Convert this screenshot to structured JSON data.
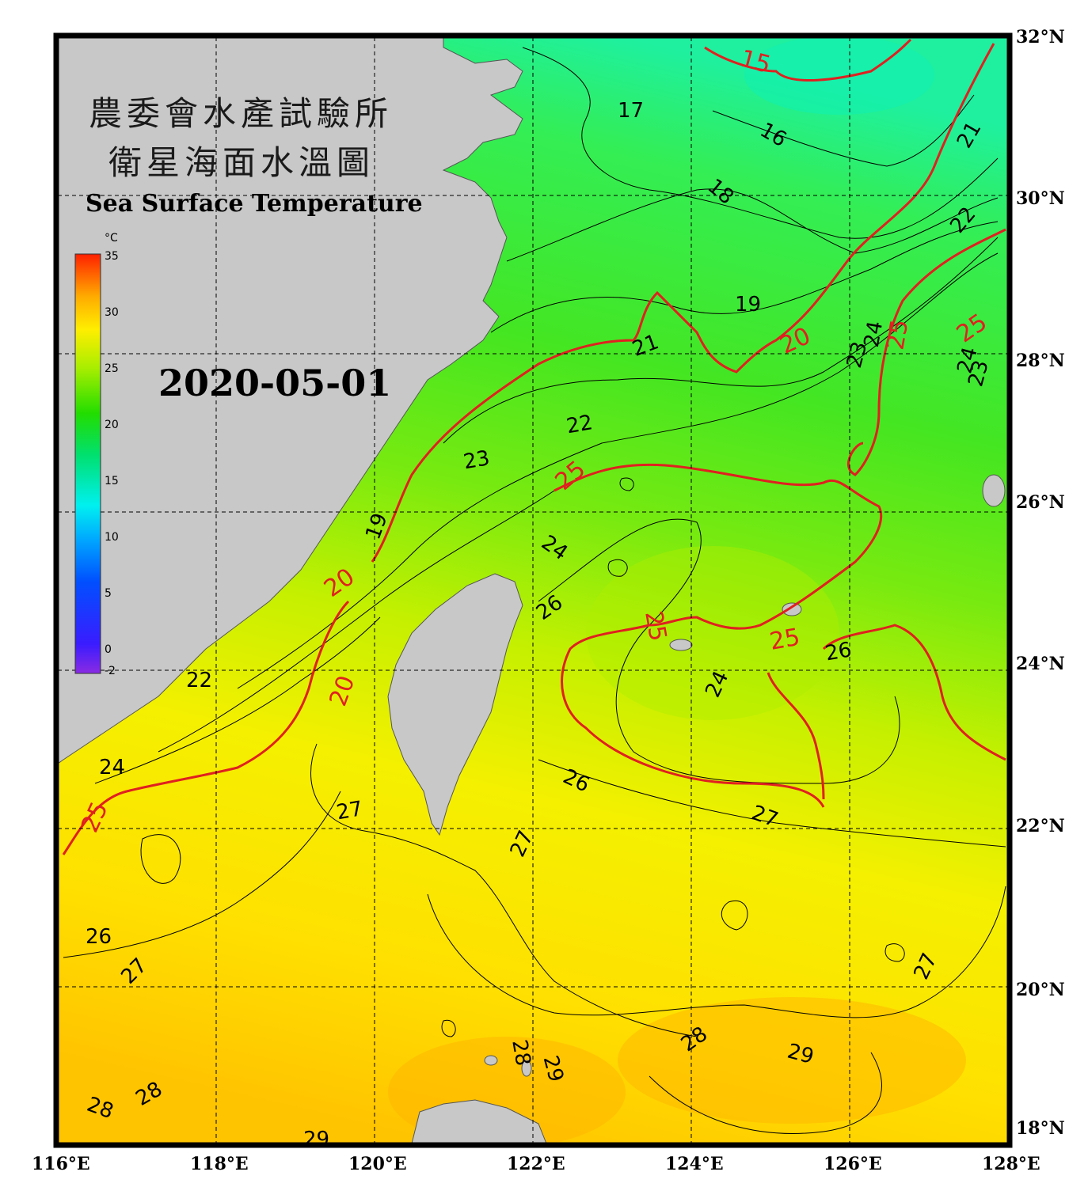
{
  "title": {
    "cn_line1": "農委會水產試驗所",
    "cn_line2": "衛星海面水溫圖",
    "en": "Sea Surface Temperature"
  },
  "date": "2020-05-01",
  "colorbar": {
    "unit": "°C",
    "ticks": [
      "35",
      "30",
      "25",
      "20",
      "15",
      "10",
      "5",
      "0",
      "-2"
    ]
  },
  "axes": {
    "longitude_labels": [
      "116°E",
      "118°E",
      "120°E",
      "122°E",
      "124°E",
      "126°E",
      "128°E"
    ],
    "latitude_labels": [
      "32°N",
      "30°N",
      "28°N",
      "26°N",
      "24°N",
      "22°N",
      "20°N",
      "18°N"
    ]
  },
  "isotherm_labels_black": [
    {
      "id": "l17",
      "text": "17"
    },
    {
      "id": "l16",
      "text": "16"
    },
    {
      "id": "l18",
      "text": "18"
    },
    {
      "id": "l19a",
      "text": "19"
    },
    {
      "id": "l19b",
      "text": "19"
    },
    {
      "id": "l21a",
      "text": "21"
    },
    {
      "id": "l21b",
      "text": "21"
    },
    {
      "id": "l22a",
      "text": "22"
    },
    {
      "id": "l22b",
      "text": "22"
    },
    {
      "id": "l22c",
      "text": "22"
    },
    {
      "id": "l23a",
      "text": "23"
    },
    {
      "id": "l23b",
      "text": "23"
    },
    {
      "id": "l23c",
      "text": "23"
    },
    {
      "id": "l24a",
      "text": "24"
    },
    {
      "id": "l24b",
      "text": "24"
    },
    {
      "id": "l24c",
      "text": "24"
    },
    {
      "id": "l24d",
      "text": "24"
    },
    {
      "id": "l24e",
      "text": "24"
    },
    {
      "id": "l26a",
      "text": "26"
    },
    {
      "id": "l26b",
      "text": "26"
    },
    {
      "id": "l26c",
      "text": "26"
    },
    {
      "id": "l26d",
      "text": "26"
    },
    {
      "id": "l27a",
      "text": "27"
    },
    {
      "id": "l27b",
      "text": "27"
    },
    {
      "id": "l27c",
      "text": "27"
    },
    {
      "id": "l27d",
      "text": "27"
    },
    {
      "id": "l27e",
      "text": "27"
    },
    {
      "id": "l28a",
      "text": "28"
    },
    {
      "id": "l28b",
      "text": "28"
    },
    {
      "id": "l28c",
      "text": "28"
    },
    {
      "id": "l28d",
      "text": "28"
    },
    {
      "id": "l29a",
      "text": "29"
    },
    {
      "id": "l29b",
      "text": "29"
    },
    {
      "id": "l29c",
      "text": "29"
    }
  ],
  "isotherm_labels_red": [
    {
      "id": "r15",
      "text": "15"
    },
    {
      "id": "r20a",
      "text": "20"
    },
    {
      "id": "r20b",
      "text": "20"
    },
    {
      "id": "r20c",
      "text": "20"
    },
    {
      "id": "r25a",
      "text": "25"
    },
    {
      "id": "r25b",
      "text": "25"
    },
    {
      "id": "r25c",
      "text": "25"
    },
    {
      "id": "r25d",
      "text": "25"
    },
    {
      "id": "r25e",
      "text": "25"
    },
    {
      "id": "r25f",
      "text": "25"
    }
  ],
  "colors": {
    "land": "#c8c8c8",
    "frame": "#000000",
    "isotherm_major": "#e02020",
    "isotherm_minor": "#000000"
  }
}
